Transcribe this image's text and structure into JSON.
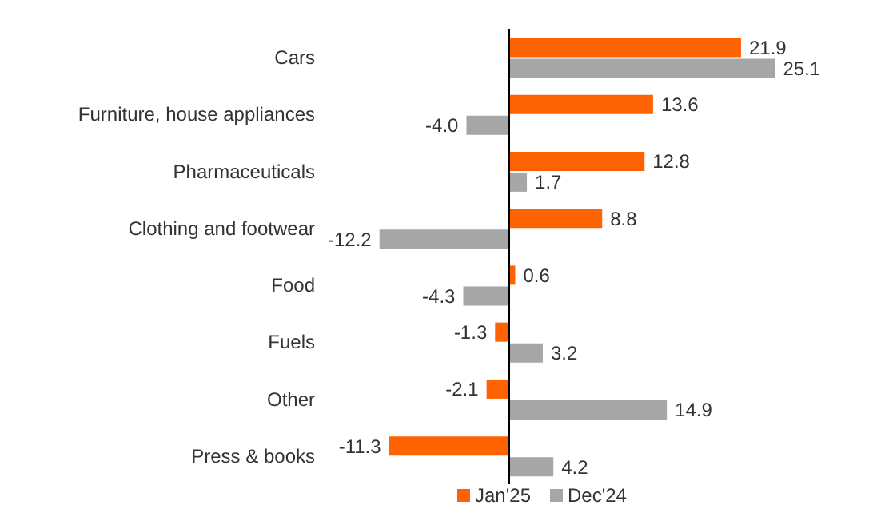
{
  "chart_data": {
    "type": "bar",
    "orientation": "horizontal",
    "legend": "bottom",
    "grid": false,
    "categories": [
      "Cars",
      "Furniture, house appliances",
      "Pharmaceuticals",
      "Clothing and footwear",
      "Food",
      "Fuels",
      "Other",
      "Press & books"
    ],
    "series": [
      {
        "name": "Jan'25",
        "color": "#ff6200",
        "values": [
          21.9,
          13.6,
          12.8,
          8.8,
          0.6,
          -1.3,
          -2.1,
          -11.3
        ],
        "value_labels": [
          "21.9",
          "13.6",
          "12.8",
          "8.8",
          "0.6",
          "-1.3",
          "-2.1",
          "-11.3"
        ]
      },
      {
        "name": "Dec'24",
        "color": "#a6a6a6",
        "values": [
          25.1,
          -4.0,
          1.7,
          -12.2,
          -4.3,
          3.2,
          14.9,
          4.2
        ],
        "value_labels": [
          "25.1",
          "-4.0",
          "1.7",
          "-12.2",
          "-4.3",
          "3.2",
          "14.9",
          "4.2"
        ]
      }
    ]
  }
}
